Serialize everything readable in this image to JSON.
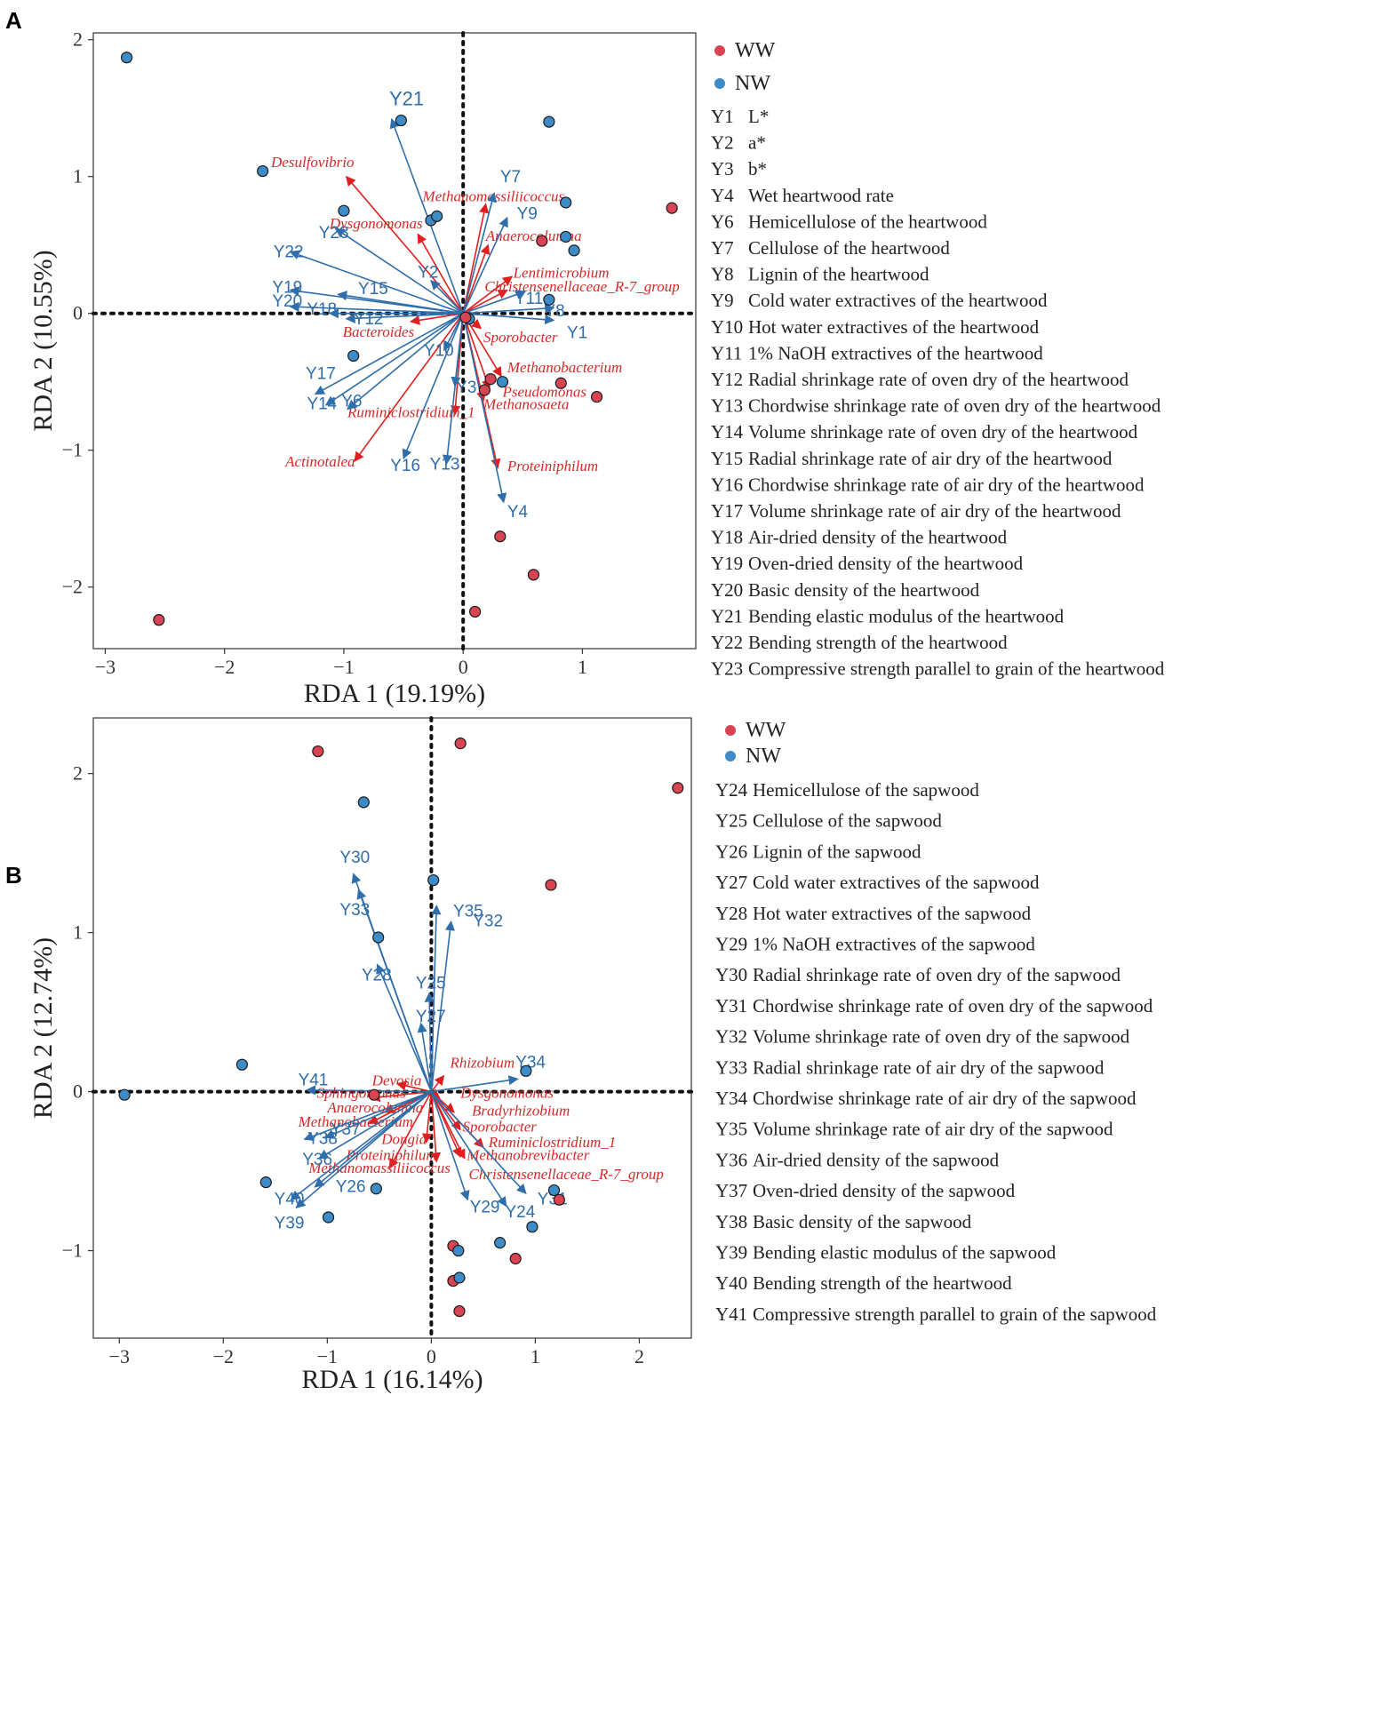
{
  "colors": {
    "ww": "#d94452",
    "nw": "#3d8cc8",
    "env_arrow": "#2f6eaa",
    "taxa_arrow": "#e02020",
    "point_stroke": "#1a1a1a"
  },
  "chart_data": [
    {
      "panel": "A",
      "type": "scatter",
      "xlabel": "RDA 1 (19.19%)",
      "ylabel": "RDA 2 (10.55%)",
      "xlim": [
        -3.1,
        1.95
      ],
      "ylim": [
        -2.45,
        2.05
      ],
      "xticks": [
        -3,
        -2,
        -1,
        0,
        1
      ],
      "xtick_labels": [
        "−3",
        "−2",
        "−1",
        "0",
        "1"
      ],
      "yticks": [
        -2,
        -1,
        0,
        1,
        2
      ],
      "ytick_labels": [
        "−2",
        "−1",
        "0",
        "1",
        "2"
      ],
      "legend_groups": [
        {
          "key": "WW",
          "color_key": "ww"
        },
        {
          "key": "NW",
          "color_key": "nw"
        }
      ],
      "legend_vars": [
        {
          "code": "Y1",
          "desc": "L*"
        },
        {
          "code": "Y2",
          "desc": "a*"
        },
        {
          "code": "Y3",
          "desc": "b*"
        },
        {
          "code": "Y4",
          "desc": "Wet heartwood rate"
        },
        {
          "code": "Y6",
          "desc": "Hemicellulose of the heartwood"
        },
        {
          "code": "Y7",
          "desc": "Cellulose of the heartwood"
        },
        {
          "code": "Y8",
          "desc": "Lignin of the heartwood"
        },
        {
          "code": "Y9",
          "desc": "Cold water extractives of the heartwood"
        },
        {
          "code": "Y10",
          "desc": "Hot water extractives of the heartwood"
        },
        {
          "code": "Y11",
          "desc": "1% NaOH extractives of the heartwood"
        },
        {
          "code": "Y12",
          "desc": "Radial shrinkage rate of oven dry of the heartwood"
        },
        {
          "code": "Y13",
          "desc": "Chordwise shrinkage rate of oven dry of the heartwood"
        },
        {
          "code": "Y14",
          "desc": "Volume shrinkage rate of oven dry of the heartwood"
        },
        {
          "code": "Y15",
          "desc": "Radial shrinkage rate of air dry of the heartwood"
        },
        {
          "code": "Y16",
          "desc": "Chordwise shrinkage rate of air dry of the heartwood"
        },
        {
          "code": "Y17",
          "desc": "Volume shrinkage rate of air dry of the heartwood"
        },
        {
          "code": "Y18",
          "desc": "Air-dried density of the heartwood"
        },
        {
          "code": "Y19",
          "desc": "Oven-dried density of the heartwood"
        },
        {
          "code": "Y20",
          "desc": "Basic density of the heartwood"
        },
        {
          "code": "Y21",
          "desc": "Bending elastic modulus of the heartwood"
        },
        {
          "code": "Y22",
          "desc": "Bending strength of the heartwood"
        },
        {
          "code": "Y23",
          "desc": "Compressive strength parallel to grain of the heartwood"
        }
      ],
      "points": [
        {
          "g": "nw",
          "x": -2.82,
          "y": 1.87
        },
        {
          "g": "nw",
          "x": -1.68,
          "y": 1.04
        },
        {
          "g": "nw",
          "x": -0.52,
          "y": 1.41
        },
        {
          "g": "nw",
          "x": -1.0,
          "y": 0.75
        },
        {
          "g": "nw",
          "x": -0.27,
          "y": 0.68
        },
        {
          "g": "nw",
          "x": -0.22,
          "y": 0.71
        },
        {
          "g": "nw",
          "x": 0.72,
          "y": 1.4
        },
        {
          "g": "nw",
          "x": 0.86,
          "y": 0.81
        },
        {
          "g": "nw",
          "x": 0.86,
          "y": 0.56
        },
        {
          "g": "nw",
          "x": 0.93,
          "y": 0.46
        },
        {
          "g": "nw",
          "x": 0.72,
          "y": 0.1
        },
        {
          "g": "nw",
          "x": 0.05,
          "y": -0.04
        },
        {
          "g": "nw",
          "x": -0.92,
          "y": -0.31
        },
        {
          "g": "nw",
          "x": 0.33,
          "y": -0.5
        },
        {
          "g": "ww",
          "x": 1.75,
          "y": 0.77
        },
        {
          "g": "ww",
          "x": 0.66,
          "y": 0.53
        },
        {
          "g": "ww",
          "x": 0.02,
          "y": -0.03
        },
        {
          "g": "ww",
          "x": 0.23,
          "y": -0.48
        },
        {
          "g": "ww",
          "x": 0.18,
          "y": -0.56
        },
        {
          "g": "ww",
          "x": 0.82,
          "y": -0.51
        },
        {
          "g": "ww",
          "x": 1.12,
          "y": -0.61
        },
        {
          "g": "ww",
          "x": 0.31,
          "y": -1.63
        },
        {
          "g": "ww",
          "x": 0.59,
          "y": -1.91
        },
        {
          "g": "ww",
          "x": 0.1,
          "y": -2.18
        },
        {
          "g": "ww",
          "x": -2.55,
          "y": -2.24
        }
      ],
      "env_vectors": [
        {
          "label": "Y21",
          "x": -0.6,
          "y": 1.42,
          "lx": -0.62,
          "ly": 1.52,
          "big": true
        },
        {
          "label": "Y7",
          "x": 0.26,
          "y": 0.88,
          "lx": 0.31,
          "ly": 0.96
        },
        {
          "label": "Y9",
          "x": 0.37,
          "y": 0.7,
          "lx": 0.45,
          "ly": 0.69
        },
        {
          "label": "Y23",
          "x": -1.07,
          "y": 0.62,
          "lx": -1.21,
          "ly": 0.55
        },
        {
          "label": "Y22",
          "x": -1.45,
          "y": 0.45,
          "lx": -1.59,
          "ly": 0.41
        },
        {
          "label": "Y2",
          "x": -0.27,
          "y": 0.24,
          "lx": -0.38,
          "ly": 0.26
        },
        {
          "label": "Y19",
          "x": -1.45,
          "y": 0.17,
          "lx": -1.6,
          "ly": 0.15
        },
        {
          "label": "Y15",
          "x": -1.05,
          "y": 0.14,
          "lx": -0.88,
          "ly": 0.14
        },
        {
          "label": "Y20",
          "x": -1.45,
          "y": 0.05,
          "lx": -1.6,
          "ly": 0.05
        },
        {
          "label": "Y18",
          "x": -1.12,
          "y": 0.0,
          "lx": -1.31,
          "ly": -0.01
        },
        {
          "label": "Y12",
          "x": -0.98,
          "y": -0.04,
          "lx": -0.92,
          "ly": -0.08
        },
        {
          "label": "Y11",
          "x": 0.52,
          "y": 0.16,
          "lx": 0.43,
          "ly": 0.07
        },
        {
          "label": "Y8",
          "x": 0.76,
          "y": 0.04,
          "lx": 0.68,
          "ly": -0.02
        },
        {
          "label": "Y1",
          "x": 0.76,
          "y": -0.05,
          "lx": 0.87,
          "ly": -0.18
        },
        {
          "label": "Y10",
          "x": -0.16,
          "y": -0.27,
          "lx": -0.33,
          "ly": -0.31
        },
        {
          "label": "Y3",
          "x": -0.07,
          "y": -0.53,
          "lx": -0.06,
          "ly": -0.58
        },
        {
          "label": "Y17",
          "x": -1.24,
          "y": -0.59,
          "lx": -1.32,
          "ly": -0.48
        },
        {
          "label": "Y14",
          "x": -1.15,
          "y": -0.67,
          "lx": -1.31,
          "ly": -0.7
        },
        {
          "label": "Y6",
          "x": -0.97,
          "y": -0.7,
          "lx": -1.02,
          "ly": -0.68
        },
        {
          "label": "Y16",
          "x": -0.5,
          "y": -1.06,
          "lx": -0.61,
          "ly": -1.15
        },
        {
          "label": "Y13",
          "x": -0.14,
          "y": -1.1,
          "lx": -0.28,
          "ly": -1.14
        },
        {
          "label": "Y4",
          "x": 0.34,
          "y": -1.38,
          "lx": 0.37,
          "ly": -1.49
        }
      ],
      "taxa_vectors": [
        {
          "label": "Desulfovibrio",
          "x": -0.98,
          "y": 1.0,
          "lx": -1.61,
          "ly": 1.07
        },
        {
          "label": "Methanomassiliicoccus",
          "x": 0.19,
          "y": 0.8,
          "lx": -0.34,
          "ly": 0.82
        },
        {
          "label": "Dysgonomonas",
          "x": -0.38,
          "y": 0.58,
          "lx": -1.12,
          "ly": 0.62
        },
        {
          "label": "Anaerocolumna",
          "x": 0.21,
          "y": 0.5,
          "lx": 0.19,
          "ly": 0.53
        },
        {
          "label": "Lentimicrobium",
          "x": 0.41,
          "y": 0.27,
          "lx": 0.42,
          "ly": 0.26
        },
        {
          "label": "Christensenellaceae_R-7_group",
          "x": 0.37,
          "y": 0.17,
          "lx": 0.18,
          "ly": 0.16
        },
        {
          "label": "Bacteroides",
          "x": -0.44,
          "y": -0.06,
          "lx": -1.01,
          "ly": -0.17
        },
        {
          "label": "Sporobacter",
          "x": 0.15,
          "y": -0.11,
          "lx": 0.17,
          "ly": -0.21
        },
        {
          "label": "Methanobacterium",
          "x": 0.32,
          "y": -0.46,
          "lx": 0.37,
          "ly": -0.43
        },
        {
          "label": "Pseudomonas",
          "x": 0.22,
          "y": -0.55,
          "lx": 0.33,
          "ly": -0.61
        },
        {
          "label": "Methanosaeta",
          "x": 0.17,
          "y": -0.64,
          "lx": 0.17,
          "ly": -0.7
        },
        {
          "label": "Ruminiclostridium_1",
          "x": -0.07,
          "y": -0.74,
          "lx": -0.97,
          "ly": -0.76
        },
        {
          "label": "Actinotalea",
          "x": -0.91,
          "y": -1.08,
          "lx": -1.49,
          "ly": -1.12
        },
        {
          "label": "Proteiniphilum",
          "x": 0.29,
          "y": -1.13,
          "lx": 0.37,
          "ly": -1.15
        }
      ]
    },
    {
      "panel": "B",
      "type": "scatter",
      "xlabel": "RDA 1 (16.14%)",
      "ylabel": "RDA 2 (12.74%)",
      "xlim": [
        -3.25,
        2.5
      ],
      "ylim": [
        -1.55,
        2.35
      ],
      "xticks": [
        -3,
        -2,
        -1,
        0,
        1,
        2
      ],
      "xtick_labels": [
        "−3",
        "−2",
        "−1",
        "0",
        "1",
        "2"
      ],
      "yticks": [
        -1,
        0,
        1,
        2
      ],
      "ytick_labels": [
        "−1",
        "0",
        "1",
        "2"
      ],
      "legend_groups": [
        {
          "key": "WW",
          "color_key": "ww"
        },
        {
          "key": "NW",
          "color_key": "nw"
        }
      ],
      "legend_vars": [
        {
          "code": "Y24",
          "desc": "Hemicellulose of the sapwood"
        },
        {
          "code": "Y25",
          "desc": "Cellulose of the sapwood"
        },
        {
          "code": "Y26",
          "desc": "Lignin of the sapwood"
        },
        {
          "code": "Y27",
          "desc": "Cold water extractives of the sapwood"
        },
        {
          "code": "Y28",
          "desc": "Hot water extractives of the sapwood"
        },
        {
          "code": "Y29",
          "desc": "1% NaOH extractives of the sapwood"
        },
        {
          "code": "Y30",
          "desc": "Radial shrinkage rate of oven dry of the sapwood"
        },
        {
          "code": "Y31",
          "desc": "Chordwise shrinkage rate of oven dry of the sapwood"
        },
        {
          "code": "Y32",
          "desc": "Volume shrinkage rate of oven dry of the sapwood"
        },
        {
          "code": "Y33",
          "desc": "Radial shrinkage rate of air dry of the sapwood"
        },
        {
          "code": "Y34",
          "desc": "Chordwise shrinkage rate of air dry of the sapwood"
        },
        {
          "code": "Y35",
          "desc": "Volume shrinkage rate of air dry of the sapwood"
        },
        {
          "code": "Y36",
          "desc": "Air-dried density of the sapwood"
        },
        {
          "code": "Y37",
          "desc": "Oven-dried density of the sapwood"
        },
        {
          "code": "Y38",
          "desc": "Basic density of the sapwood"
        },
        {
          "code": "Y39",
          "desc": "Bending elastic modulus of the sapwood"
        },
        {
          "code": "Y40",
          "desc": "Bending strength of the heartwood"
        },
        {
          "code": "Y41",
          "desc": "Compressive strength parallel to grain of the sapwood"
        }
      ],
      "points": [
        {
          "g": "ww",
          "x": -1.09,
          "y": 2.14
        },
        {
          "g": "ww",
          "x": 0.28,
          "y": 2.19
        },
        {
          "g": "ww",
          "x": 2.37,
          "y": 1.91
        },
        {
          "g": "ww",
          "x": 1.15,
          "y": 1.3
        },
        {
          "g": "ww",
          "x": -0.55,
          "y": -0.02
        },
        {
          "g": "ww",
          "x": 1.23,
          "y": -0.68
        },
        {
          "g": "ww",
          "x": 0.21,
          "y": -0.97
        },
        {
          "g": "ww",
          "x": 0.81,
          "y": -1.05
        },
        {
          "g": "ww",
          "x": 0.21,
          "y": -1.19
        },
        {
          "g": "ww",
          "x": 0.27,
          "y": -1.38
        },
        {
          "g": "nw",
          "x": -0.65,
          "y": 1.82
        },
        {
          "g": "nw",
          "x": 0.02,
          "y": 1.33
        },
        {
          "g": "nw",
          "x": -0.51,
          "y": 0.97
        },
        {
          "g": "nw",
          "x": -1.82,
          "y": 0.17
        },
        {
          "g": "nw",
          "x": -2.95,
          "y": -0.02
        },
        {
          "g": "nw",
          "x": 0.91,
          "y": 0.13
        },
        {
          "g": "nw",
          "x": -1.59,
          "y": -0.57
        },
        {
          "g": "nw",
          "x": -0.53,
          "y": -0.61
        },
        {
          "g": "nw",
          "x": -0.99,
          "y": -0.79
        },
        {
          "g": "nw",
          "x": 1.18,
          "y": -0.62
        },
        {
          "g": "nw",
          "x": 0.66,
          "y": -0.95
        },
        {
          "g": "nw",
          "x": 0.97,
          "y": -0.85
        },
        {
          "g": "nw",
          "x": 0.26,
          "y": -1.0
        },
        {
          "g": "nw",
          "x": 0.27,
          "y": -1.17
        }
      ],
      "env_vectors": [
        {
          "label": "Y30",
          "x": -0.75,
          "y": 1.37,
          "lx": -0.88,
          "ly": 1.44
        },
        {
          "label": "Y33",
          "x": -0.7,
          "y": 1.27,
          "lx": -0.88,
          "ly": 1.11
        },
        {
          "label": "Y35",
          "x": 0.05,
          "y": 1.17,
          "lx": 0.21,
          "ly": 1.1
        },
        {
          "label": "Y32",
          "x": 0.19,
          "y": 1.07,
          "lx": 0.4,
          "ly": 1.04
        },
        {
          "label": "Y28",
          "x": -0.52,
          "y": 0.8,
          "lx": -0.67,
          "ly": 0.7
        },
        {
          "label": "Y25",
          "x": -0.02,
          "y": 0.62,
          "lx": -0.15,
          "ly": 0.65
        },
        {
          "label": "Y27",
          "x": -0.1,
          "y": 0.43,
          "lx": -0.15,
          "ly": 0.44
        },
        {
          "label": "Y34",
          "x": 0.83,
          "y": 0.08,
          "lx": 0.81,
          "ly": 0.15
        },
        {
          "label": "Y41",
          "x": -1.2,
          "y": 0.01,
          "lx": -1.28,
          "ly": 0.04
        },
        {
          "label": "Y38",
          "x": -1.22,
          "y": -0.3,
          "lx": -1.19,
          "ly": -0.33
        },
        {
          "label": "Y37",
          "x": -1.02,
          "y": -0.29,
          "lx": -0.97,
          "ly": -0.27
        },
        {
          "label": "Y36",
          "x": -1.08,
          "y": -0.42,
          "lx": -1.24,
          "ly": -0.46
        },
        {
          "label": "Y26",
          "x": -1.12,
          "y": -0.6,
          "lx": -0.92,
          "ly": -0.63
        },
        {
          "label": "Y40",
          "x": -1.35,
          "y": -0.68,
          "lx": -1.51,
          "ly": -0.71
        },
        {
          "label": "Y39",
          "x": -1.3,
          "y": -0.73,
          "lx": -1.51,
          "ly": -0.86
        },
        {
          "label": "Y29",
          "x": 0.35,
          "y": -0.68,
          "lx": 0.37,
          "ly": -0.76
        },
        {
          "label": "Y24",
          "x": 0.72,
          "y": -0.72,
          "lx": 0.71,
          "ly": -0.79
        },
        {
          "label": "Y31",
          "x": 0.91,
          "y": -0.64,
          "lx": 1.02,
          "ly": -0.71
        }
      ],
      "taxa_vectors": [
        {
          "label": "Rhizobium",
          "x": 0.12,
          "y": 0.1,
          "lx": 0.18,
          "ly": 0.15
        },
        {
          "label": "Devosia",
          "x": -0.33,
          "y": 0.05,
          "lx": -0.57,
          "ly": 0.04
        },
        {
          "label": "Sphingomonas",
          "x": -0.58,
          "y": -0.04,
          "lx": -1.1,
          "ly": -0.04
        },
        {
          "label": "Dysgonomonas",
          "x": 0.08,
          "y": -0.04,
          "lx": 0.28,
          "ly": -0.04
        },
        {
          "label": "Anaerocolumna",
          "x": -0.45,
          "y": -0.13,
          "lx": -1.0,
          "ly": -0.13
        },
        {
          "label": "Bradyrhizobium",
          "x": 0.22,
          "y": -0.13,
          "lx": 0.39,
          "ly": -0.15
        },
        {
          "label": "Methanobacterium",
          "x": -0.6,
          "y": -0.2,
          "lx": -1.28,
          "ly": -0.22
        },
        {
          "label": "Sporobacter",
          "x": 0.28,
          "y": -0.24,
          "lx": 0.3,
          "ly": -0.25
        },
        {
          "label": "Dongia",
          "x": -0.05,
          "y": -0.32,
          "lx": -0.48,
          "ly": -0.33
        },
        {
          "label": "Ruminiclostridium_1",
          "x": 0.5,
          "y": -0.35,
          "lx": 0.55,
          "ly": -0.35
        },
        {
          "label": "Methanobrevibacter",
          "x": 0.28,
          "y": -0.41,
          "lx": 0.34,
          "ly": -0.43
        },
        {
          "label": "Proteiniphilum",
          "x": 0.05,
          "y": -0.44,
          "lx": -0.82,
          "ly": -0.43
        },
        {
          "label": "Methanomassiliicoccus",
          "x": -0.4,
          "y": -0.48,
          "lx": -1.18,
          "ly": -0.51
        },
        {
          "label": "Christensenellaceae_R-7_group",
          "x": 0.32,
          "y": -0.42,
          "lx": 0.36,
          "ly": -0.55
        }
      ]
    }
  ]
}
